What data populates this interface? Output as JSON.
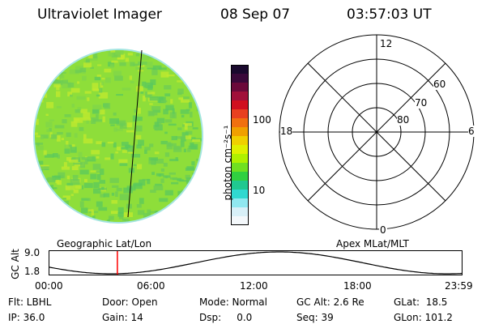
{
  "header": {
    "instrument": "Ultraviolet Imager",
    "date": "08 Sep 07",
    "time": "03:57:03 UT"
  },
  "colorbar": {
    "unit_label": "photon cm⁻²s⁻¹",
    "tick_100": "100",
    "tick_10": "10",
    "colors_top_to_bottom": [
      "#1a0a2e",
      "#3a0a3a",
      "#6b0a3a",
      "#a0103a",
      "#d01020",
      "#e84020",
      "#f07010",
      "#f0a000",
      "#f0d000",
      "#e0f000",
      "#b0f000",
      "#70e020",
      "#30d040",
      "#20c890",
      "#30d8d0",
      "#90e8f0",
      "#d8f0f8",
      "#f4f8fb"
    ]
  },
  "disk": {
    "base_color": "#8ede3a",
    "patch_colors": [
      "#a6e633",
      "#7fd64a",
      "#c2ea2e",
      "#6ccc55",
      "#59c85e"
    ],
    "limb_color": "#5ad0c8",
    "line_label": ""
  },
  "polar": {
    "label_12": "12",
    "label_6": "6",
    "label_18": "18",
    "label_0": "0",
    "label_60": "60",
    "label_70": "70",
    "label_80": "80"
  },
  "orbit": {
    "left_title": "Geographic Lat/Lon",
    "right_title": "Apex MLat/MLT",
    "y_axis_label": "GC Alt",
    "y_top": "9.0",
    "y_bottom": "1.8",
    "x_ticks": [
      "00:00",
      "06:00",
      "12:00",
      "18:00",
      "23:59"
    ],
    "current_time_marker_hours": 3.95,
    "marker_color": "#ff0000"
  },
  "info": {
    "flt": "Flt: LBHL",
    "ip": "IP: 36.0",
    "door": "Door: Open",
    "gain": "Gain: 14",
    "mode": "Mode: Normal",
    "dsp": "Dsp:     0.0",
    "gc_alt": "GC Alt: 2.6 Re",
    "seq": "Seq: 39",
    "glat": "GLat:  18.5",
    "glon": "GLon: 101.2"
  }
}
